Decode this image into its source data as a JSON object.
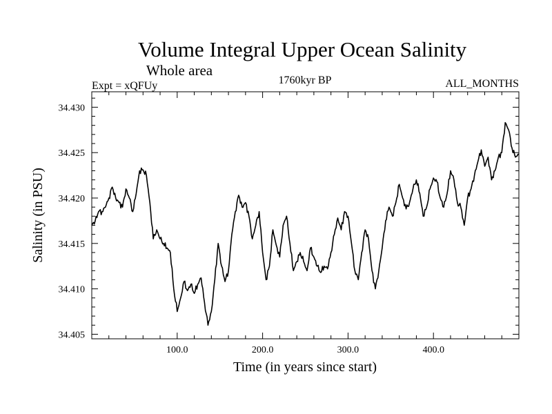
{
  "chart_data": {
    "type": "line",
    "title": "Volume Integral Upper Ocean Salinity",
    "subtitle": "Whole area",
    "experiment": "Expt = xQFUy",
    "period": "1760kyr BP",
    "months": "ALL_MONTHS",
    "xlabel": "Time (in years since start)",
    "ylabel": "Salinity (in PSU)",
    "xlim": [
      0,
      500
    ],
    "ylim": [
      34.4045,
      34.4317
    ],
    "xticks": [
      100,
      200,
      300,
      400
    ],
    "xtick_labels": [
      "100.0",
      "200.0",
      "300.0",
      "400.0"
    ],
    "yticks": [
      34.405,
      34.41,
      34.415,
      34.42,
      34.425,
      34.43
    ],
    "ytick_labels": [
      "34.405",
      "34.410",
      "34.415",
      "34.420",
      "34.425",
      "34.430"
    ],
    "series": [
      {
        "name": "Salinity",
        "x": [
          0,
          4,
          8,
          12,
          16,
          20,
          24,
          28,
          32,
          36,
          40,
          44,
          48,
          52,
          56,
          60,
          64,
          68,
          72,
          76,
          80,
          84,
          88,
          92,
          96,
          100,
          104,
          108,
          112,
          116,
          120,
          124,
          128,
          132,
          136,
          140,
          144,
          148,
          152,
          156,
          160,
          164,
          168,
          172,
          176,
          180,
          184,
          188,
          192,
          196,
          200,
          204,
          208,
          212,
          216,
          220,
          224,
          228,
          232,
          236,
          240,
          244,
          248,
          252,
          256,
          260,
          264,
          268,
          272,
          276,
          280,
          284,
          288,
          292,
          296,
          300,
          304,
          308,
          312,
          316,
          320,
          324,
          328,
          332,
          336,
          340,
          344,
          348,
          352,
          356,
          360,
          364,
          368,
          372,
          376,
          380,
          384,
          388,
          392,
          396,
          400,
          404,
          408,
          412,
          416,
          420,
          424,
          428,
          432,
          436,
          440,
          444,
          448,
          452,
          456,
          460,
          464,
          468,
          472,
          476,
          480,
          484,
          488,
          492,
          496,
          500
        ],
        "values": [
          34.417,
          34.4175,
          34.4185,
          34.4185,
          34.419,
          34.42,
          34.4212,
          34.42,
          34.4195,
          34.419,
          34.421,
          34.42,
          34.4185,
          34.4205,
          34.423,
          34.4231,
          34.4225,
          34.4195,
          34.4155,
          34.4165,
          34.4155,
          34.415,
          34.4145,
          34.414,
          34.41,
          34.4075,
          34.409,
          34.4108,
          34.4098,
          34.4105,
          34.4095,
          34.4105,
          34.4112,
          34.4085,
          34.406,
          34.4075,
          34.411,
          34.415,
          34.4125,
          34.4108,
          34.412,
          34.416,
          34.4185,
          34.4203,
          34.419,
          34.4195,
          34.418,
          34.4155,
          34.417,
          34.4185,
          34.414,
          34.411,
          34.4125,
          34.4165,
          34.4148,
          34.4135,
          34.417,
          34.418,
          34.415,
          34.412,
          34.413,
          34.414,
          34.413,
          34.412,
          34.4145,
          34.4135,
          34.4125,
          34.4118,
          34.4125,
          34.4122,
          34.414,
          34.416,
          34.4178,
          34.4165,
          34.4185,
          34.418,
          34.415,
          34.412,
          34.411,
          34.414,
          34.4165,
          34.4155,
          34.412,
          34.41,
          34.412,
          34.4145,
          34.4175,
          34.419,
          34.418,
          34.4195,
          34.4215,
          34.42,
          34.4188,
          34.4195,
          34.421,
          34.422,
          34.4205,
          34.418,
          34.419,
          34.421,
          34.4222,
          34.4218,
          34.42,
          34.419,
          34.4205,
          34.423,
          34.422,
          34.4195,
          34.419,
          34.417,
          34.42,
          34.421,
          34.4225,
          34.424,
          34.4253,
          34.4235,
          34.4245,
          34.422,
          34.423,
          34.4245,
          34.425,
          34.4283,
          34.4275,
          34.4255,
          34.4245,
          34.4248
        ]
      }
    ]
  }
}
